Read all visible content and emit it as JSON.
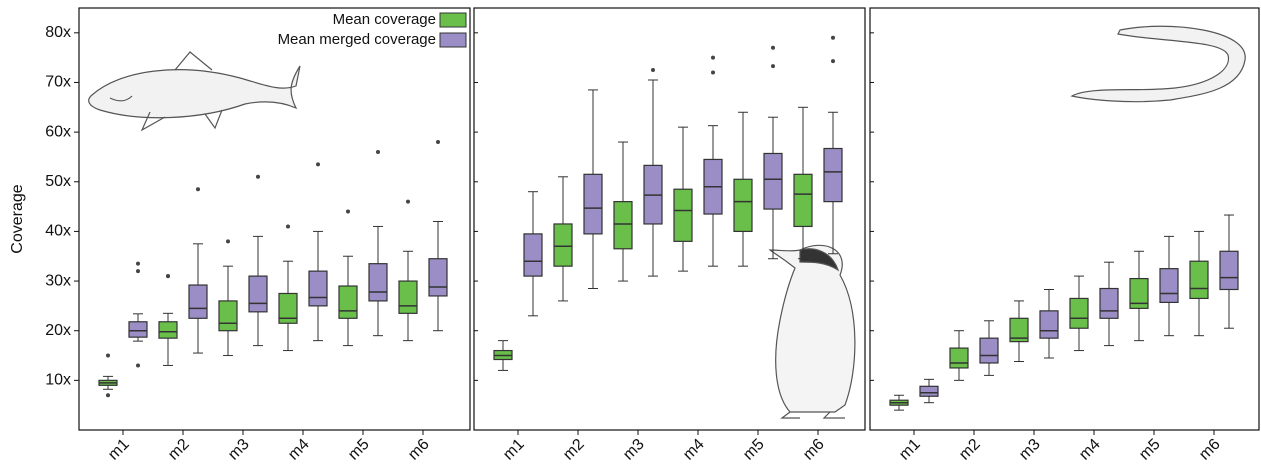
{
  "chart_data": [
    {
      "type": "box",
      "y_label": "Coverage",
      "legend": "upper right",
      "categories": [
        "m1",
        "m2",
        "m3",
        "m4",
        "m5",
        "m6"
      ],
      "ylim": [
        0,
        85
      ],
      "yticks": [
        {
          "value": 10,
          "label": "10x"
        },
        {
          "value": 20,
          "label": "20x"
        },
        {
          "value": 30,
          "label": "30x"
        },
        {
          "value": 40,
          "label": "40x"
        },
        {
          "value": 50,
          "label": "50x"
        },
        {
          "value": 60,
          "label": "60x"
        },
        {
          "value": 70,
          "label": "70x"
        },
        {
          "value": 80,
          "label": "80x"
        }
      ],
      "series": [
        {
          "name": "Mean coverage",
          "color": "#6abf4b",
          "values": [
            {
              "low": 8.2,
              "q1": 9.0,
              "median": 9.5,
              "q3": 10.0,
              "high": 10.8,
              "outliers": [
                15,
                7
              ]
            },
            {
              "low": 13,
              "q1": 18.5,
              "median": 19.8,
              "q3": 21.8,
              "high": 23.5,
              "outliers": [
                31,
                31
              ]
            },
            {
              "low": 15,
              "q1": 20,
              "median": 21.5,
              "q3": 26,
              "high": 33,
              "outliers": [
                38
              ]
            },
            {
              "low": 16,
              "q1": 21.5,
              "median": 22.5,
              "q3": 27.5,
              "high": 34,
              "outliers": [
                41
              ]
            },
            {
              "low": 17,
              "q1": 22.5,
              "median": 24,
              "q3": 29,
              "high": 35,
              "outliers": [
                44
              ]
            },
            {
              "low": 18,
              "q1": 23.5,
              "median": 25,
              "q3": 30,
              "high": 36,
              "outliers": [
                46
              ]
            }
          ]
        },
        {
          "name": "Mean merged coverage",
          "color": "#9b8dc5",
          "values": [
            {
              "low": 17.9,
              "q1": 18.7,
              "median": 20,
              "q3": 21.8,
              "high": 23.4,
              "outliers": [
                33.5,
                32,
                13
              ]
            },
            {
              "low": 15.5,
              "q1": 22.5,
              "median": 24.5,
              "q3": 29.2,
              "high": 37.5,
              "outliers": [
                48.5
              ]
            },
            {
              "low": 17,
              "q1": 23.8,
              "median": 25.5,
              "q3": 31,
              "high": 39,
              "outliers": [
                51
              ]
            },
            {
              "low": 18,
              "q1": 25,
              "median": 26.7,
              "q3": 32,
              "high": 40,
              "outliers": [
                53.5
              ]
            },
            {
              "low": 19,
              "q1": 26,
              "median": 27.8,
              "q3": 33.5,
              "high": 41,
              "outliers": [
                56
              ]
            },
            {
              "low": 20,
              "q1": 27,
              "median": 28.8,
              "q3": 34.5,
              "high": 42,
              "outliers": [
                58
              ]
            }
          ]
        }
      ]
    },
    {
      "type": "box",
      "categories": [
        "m1",
        "m2",
        "m3",
        "m4",
        "m5",
        "m6"
      ],
      "ylim": [
        0,
        85
      ],
      "series": [
        {
          "color": "#6abf4b",
          "values": [
            {
              "low": 12,
              "q1": 14.2,
              "median": 15,
              "q3": 16,
              "high": 18,
              "outliers": []
            },
            {
              "low": 26,
              "q1": 33,
              "median": 37,
              "q3": 41.5,
              "high": 51,
              "outliers": []
            },
            {
              "low": 30,
              "q1": 36.5,
              "median": 41.5,
              "q3": 46,
              "high": 58,
              "outliers": []
            },
            {
              "low": 32,
              "q1": 38,
              "median": 44.2,
              "q3": 48.5,
              "high": 61,
              "outliers": []
            },
            {
              "low": 33,
              "q1": 40,
              "median": 46,
              "q3": 50.5,
              "high": 64,
              "outliers": []
            },
            {
              "low": 34.5,
              "q1": 41,
              "median": 47.5,
              "q3": 51.5,
              "high": 65,
              "outliers": []
            }
          ]
        },
        {
          "color": "#9b8dc5",
          "values": [
            {
              "low": 23,
              "q1": 31,
              "median": 34,
              "q3": 39.5,
              "high": 48,
              "outliers": []
            },
            {
              "low": 28.5,
              "q1": 39.5,
              "median": 44.7,
              "q3": 51.5,
              "high": 68.5,
              "outliers": []
            },
            {
              "low": 31,
              "q1": 41.5,
              "median": 47.3,
              "q3": 53.3,
              "high": 70.5,
              "outliers": [
                72.5
              ]
            },
            {
              "low": 33,
              "q1": 43.5,
              "median": 49,
              "q3": 54.5,
              "high": 61.3,
              "outliers": [
                75,
                72
              ]
            },
            {
              "low": 34.5,
              "q1": 44.5,
              "median": 50.5,
              "q3": 55.7,
              "high": 63,
              "outliers": [
                77,
                73.3
              ]
            },
            {
              "low": 35.5,
              "q1": 46,
              "median": 52,
              "q3": 56.7,
              "high": 64,
              "outliers": [
                79,
                74.3
              ]
            }
          ]
        }
      ]
    },
    {
      "type": "box",
      "categories": [
        "m1",
        "m2",
        "m3",
        "m4",
        "m5",
        "m6"
      ],
      "ylim": [
        0,
        85
      ],
      "series": [
        {
          "color": "#6abf4b",
          "values": [
            {
              "low": 4,
              "q1": 5,
              "median": 5.5,
              "q3": 6,
              "high": 7,
              "outliers": []
            },
            {
              "low": 10,
              "q1": 12.5,
              "median": 13.5,
              "q3": 16.5,
              "high": 20,
              "outliers": []
            },
            {
              "low": 13.8,
              "q1": 17.8,
              "median": 18.5,
              "q3": 22.5,
              "high": 26,
              "outliers": []
            },
            {
              "low": 16,
              "q1": 20.5,
              "median": 22.5,
              "q3": 26.5,
              "high": 31,
              "outliers": []
            },
            {
              "low": 18,
              "q1": 24.5,
              "median": 25.5,
              "q3": 30.5,
              "high": 36,
              "outliers": []
            },
            {
              "low": 19,
              "q1": 26.5,
              "median": 28.5,
              "q3": 34,
              "high": 40,
              "outliers": []
            }
          ]
        },
        {
          "color": "#9b8dc5",
          "values": [
            {
              "low": 5.5,
              "q1": 6.8,
              "median": 7.5,
              "q3": 8.8,
              "high": 10.2,
              "outliers": []
            },
            {
              "low": 11,
              "q1": 13.5,
              "median": 15,
              "q3": 18.5,
              "high": 22,
              "outliers": []
            },
            {
              "low": 14.5,
              "q1": 18.5,
              "median": 20,
              "q3": 24,
              "high": 28.3,
              "outliers": []
            },
            {
              "low": 17,
              "q1": 22.5,
              "median": 24,
              "q3": 28.5,
              "high": 33.8,
              "outliers": []
            },
            {
              "low": 19,
              "q1": 25.7,
              "median": 27.5,
              "q3": 32.5,
              "high": 39,
              "outliers": []
            },
            {
              "low": 20.5,
              "q1": 28.3,
              "median": 30.7,
              "q3": 36,
              "high": 43.3,
              "outliers": []
            }
          ]
        }
      ]
    }
  ]
}
